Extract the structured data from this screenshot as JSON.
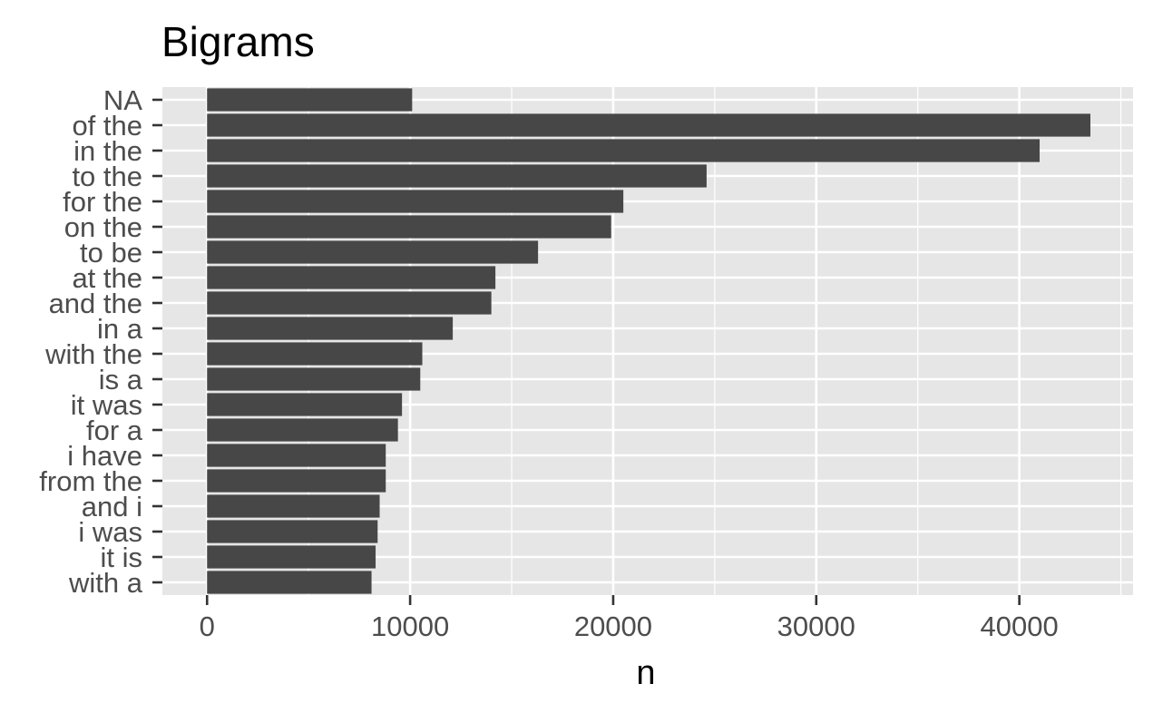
{
  "chart_data": {
    "type": "bar",
    "orientation": "horizontal",
    "title": "Bigrams",
    "xlabel": "n",
    "ylabel": "",
    "xlim": [
      -2200,
      45600
    ],
    "x_ticks": [
      0,
      10000,
      20000,
      30000,
      40000
    ],
    "grid": true,
    "legend": "none",
    "categories": [
      "NA",
      "of the",
      "in the",
      "to the",
      "for the",
      "on the",
      "to be",
      "at the",
      "and the",
      "in a",
      "with the",
      "is a",
      "it was",
      "for a",
      "i have",
      "from the",
      "and i",
      "i was",
      "it is",
      "with a"
    ],
    "values": [
      10100,
      43500,
      41000,
      24600,
      20500,
      19900,
      16300,
      14200,
      14000,
      12100,
      10600,
      10500,
      9600,
      9400,
      8800,
      8800,
      8500,
      8400,
      8300,
      8100
    ],
    "colors": {
      "bar": "#474747",
      "panel": "#e6e6e6",
      "grid": "#ffffff",
      "tick": "#333333",
      "tick_label": "#4d4d4d",
      "text": "#000000"
    }
  }
}
